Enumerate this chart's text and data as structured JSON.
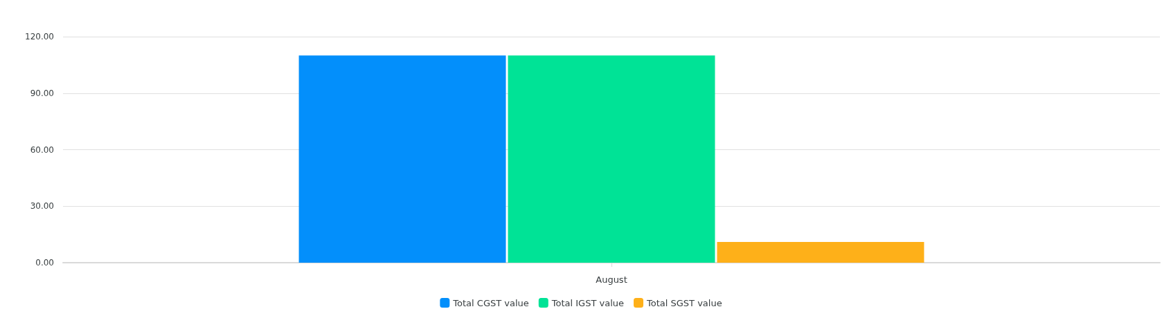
{
  "chart_data": {
    "type": "bar",
    "categories": [
      "August"
    ],
    "series": [
      {
        "name": "Total CGST value",
        "color": "#038ffb",
        "values": [
          110
        ]
      },
      {
        "name": "Total IGST value",
        "color": "#00e396",
        "values": [
          110
        ]
      },
      {
        "name": "Total SGST value",
        "color": "#feb019",
        "values": [
          11
        ]
      }
    ],
    "ylim": [
      0,
      120
    ],
    "yticks": [
      {
        "value": 0,
        "label": "0.00"
      },
      {
        "value": 30,
        "label": "30.00"
      },
      {
        "value": 60,
        "label": "60.00"
      },
      {
        "value": 90,
        "label": "90.00"
      },
      {
        "value": 120,
        "label": "120.00"
      }
    ],
    "grid": "y",
    "legend": "bottom"
  }
}
